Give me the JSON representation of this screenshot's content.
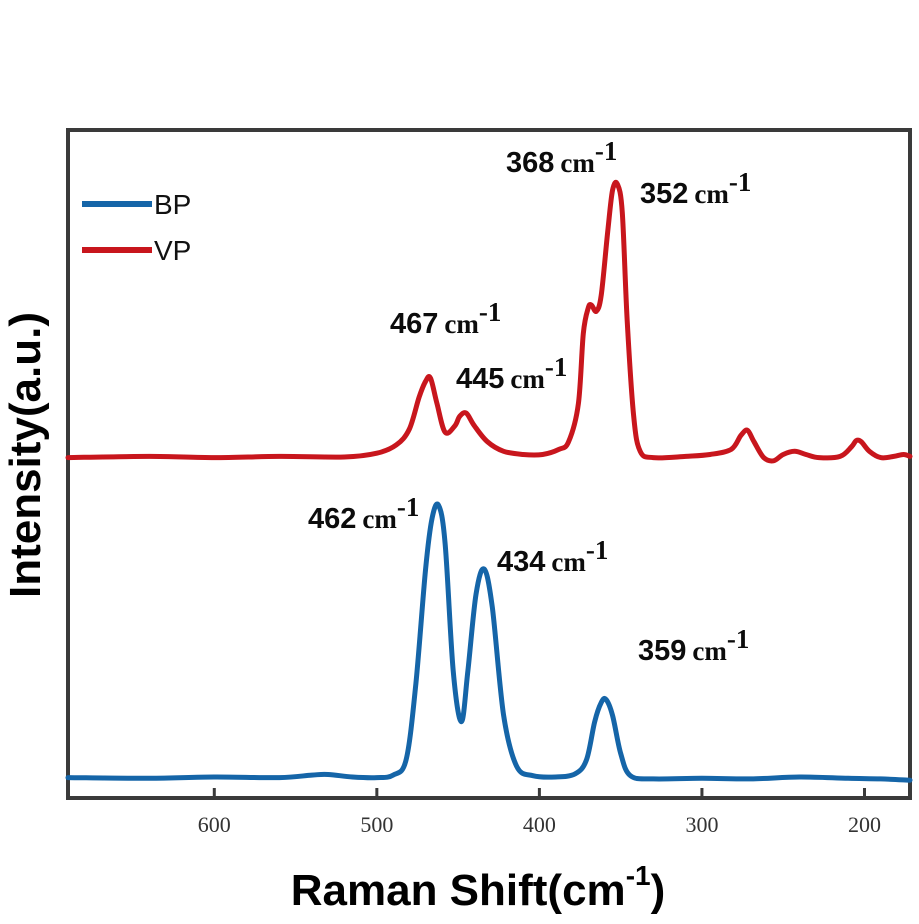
{
  "chart_data": {
    "type": "line",
    "title": "",
    "xlabel": "Raman Shift(cm",
    "xlabel_sup": "-1",
    "xlabel_close": ")",
    "ylabel": "Intensity(a.u.)",
    "xlim": [
      690,
      172
    ],
    "x_reversed": true,
    "xticks": [
      600,
      500,
      400,
      300,
      200
    ],
    "xtick_labels": [
      "600",
      "500",
      "400",
      "300",
      "200"
    ],
    "y_ticks_shown": false,
    "grid": false,
    "legend_position": "top-left",
    "y_range": [
      0,
      1.05
    ],
    "series": [
      {
        "name": "BP",
        "color": "#1565a8",
        "baseline": 0.03,
        "points": [
          [
            690,
            0.032
          ],
          [
            640,
            0.031
          ],
          [
            600,
            0.033
          ],
          [
            560,
            0.032
          ],
          [
            540,
            0.036
          ],
          [
            530,
            0.037
          ],
          [
            515,
            0.033
          ],
          [
            500,
            0.032
          ],
          [
            490,
            0.036
          ],
          [
            482,
            0.06
          ],
          [
            476,
            0.18
          ],
          [
            470,
            0.36
          ],
          [
            466,
            0.44
          ],
          [
            462,
            0.46
          ],
          [
            458,
            0.4
          ],
          [
            453,
            0.2
          ],
          [
            448,
            0.12
          ],
          [
            444,
            0.2
          ],
          [
            439,
            0.32
          ],
          [
            434,
            0.36
          ],
          [
            429,
            0.3
          ],
          [
            422,
            0.13
          ],
          [
            414,
            0.05
          ],
          [
            404,
            0.035
          ],
          [
            390,
            0.033
          ],
          [
            378,
            0.038
          ],
          [
            371,
            0.06
          ],
          [
            366,
            0.12
          ],
          [
            362,
            0.15
          ],
          [
            359,
            0.155
          ],
          [
            355,
            0.13
          ],
          [
            350,
            0.07
          ],
          [
            344,
            0.035
          ],
          [
            330,
            0.03
          ],
          [
            300,
            0.031
          ],
          [
            270,
            0.03
          ],
          [
            240,
            0.033
          ],
          [
            210,
            0.031
          ],
          [
            190,
            0.03
          ],
          [
            172,
            0.028
          ]
        ]
      },
      {
        "name": "VP",
        "color": "#c8161d",
        "baseline": 0.54,
        "points": [
          [
            690,
            0.535
          ],
          [
            640,
            0.537
          ],
          [
            600,
            0.535
          ],
          [
            560,
            0.537
          ],
          [
            520,
            0.536
          ],
          [
            500,
            0.542
          ],
          [
            488,
            0.555
          ],
          [
            480,
            0.58
          ],
          [
            474,
            0.63
          ],
          [
            470,
            0.655
          ],
          [
            467,
            0.66
          ],
          [
            463,
            0.62
          ],
          [
            458,
            0.575
          ],
          [
            452,
            0.585
          ],
          [
            449,
            0.6
          ],
          [
            445,
            0.605
          ],
          [
            440,
            0.585
          ],
          [
            432,
            0.56
          ],
          [
            422,
            0.545
          ],
          [
            410,
            0.54
          ],
          [
            398,
            0.54
          ],
          [
            388,
            0.548
          ],
          [
            382,
            0.56
          ],
          [
            376,
            0.62
          ],
          [
            373,
            0.73
          ],
          [
            370,
            0.77
          ],
          [
            368,
            0.775
          ],
          [
            365,
            0.765
          ],
          [
            362,
            0.79
          ],
          [
            358,
            0.89
          ],
          [
            355,
            0.955
          ],
          [
            352,
            0.965
          ],
          [
            349,
            0.92
          ],
          [
            346,
            0.75
          ],
          [
            342,
            0.6
          ],
          [
            338,
            0.545
          ],
          [
            330,
            0.535
          ],
          [
            310,
            0.537
          ],
          [
            295,
            0.54
          ],
          [
            282,
            0.548
          ],
          [
            276,
            0.57
          ],
          [
            272,
            0.578
          ],
          [
            268,
            0.56
          ],
          [
            262,
            0.535
          ],
          [
            256,
            0.53
          ],
          [
            250,
            0.54
          ],
          [
            243,
            0.545
          ],
          [
            236,
            0.54
          ],
          [
            228,
            0.535
          ],
          [
            215,
            0.537
          ],
          [
            208,
            0.552
          ],
          [
            205,
            0.562
          ],
          [
            202,
            0.56
          ],
          [
            197,
            0.545
          ],
          [
            190,
            0.535
          ],
          [
            182,
            0.537
          ],
          [
            176,
            0.54
          ],
          [
            172,
            0.537
          ]
        ]
      }
    ],
    "annotations": [
      {
        "series": "VP",
        "value": "368",
        "unit": "cm",
        "sup": "-1"
      },
      {
        "series": "VP",
        "value": "352",
        "unit": "cm",
        "sup": "-1"
      },
      {
        "series": "VP",
        "value": "467",
        "unit": "cm",
        "sup": "-1"
      },
      {
        "series": "VP",
        "value": "445",
        "unit": "cm",
        "sup": "-1"
      },
      {
        "series": "BP",
        "value": "462",
        "unit": "cm",
        "sup": "-1"
      },
      {
        "series": "BP",
        "value": "434",
        "unit": "cm",
        "sup": "-1"
      },
      {
        "series": "BP",
        "value": "359",
        "unit": "cm",
        "sup": "-1"
      }
    ]
  }
}
